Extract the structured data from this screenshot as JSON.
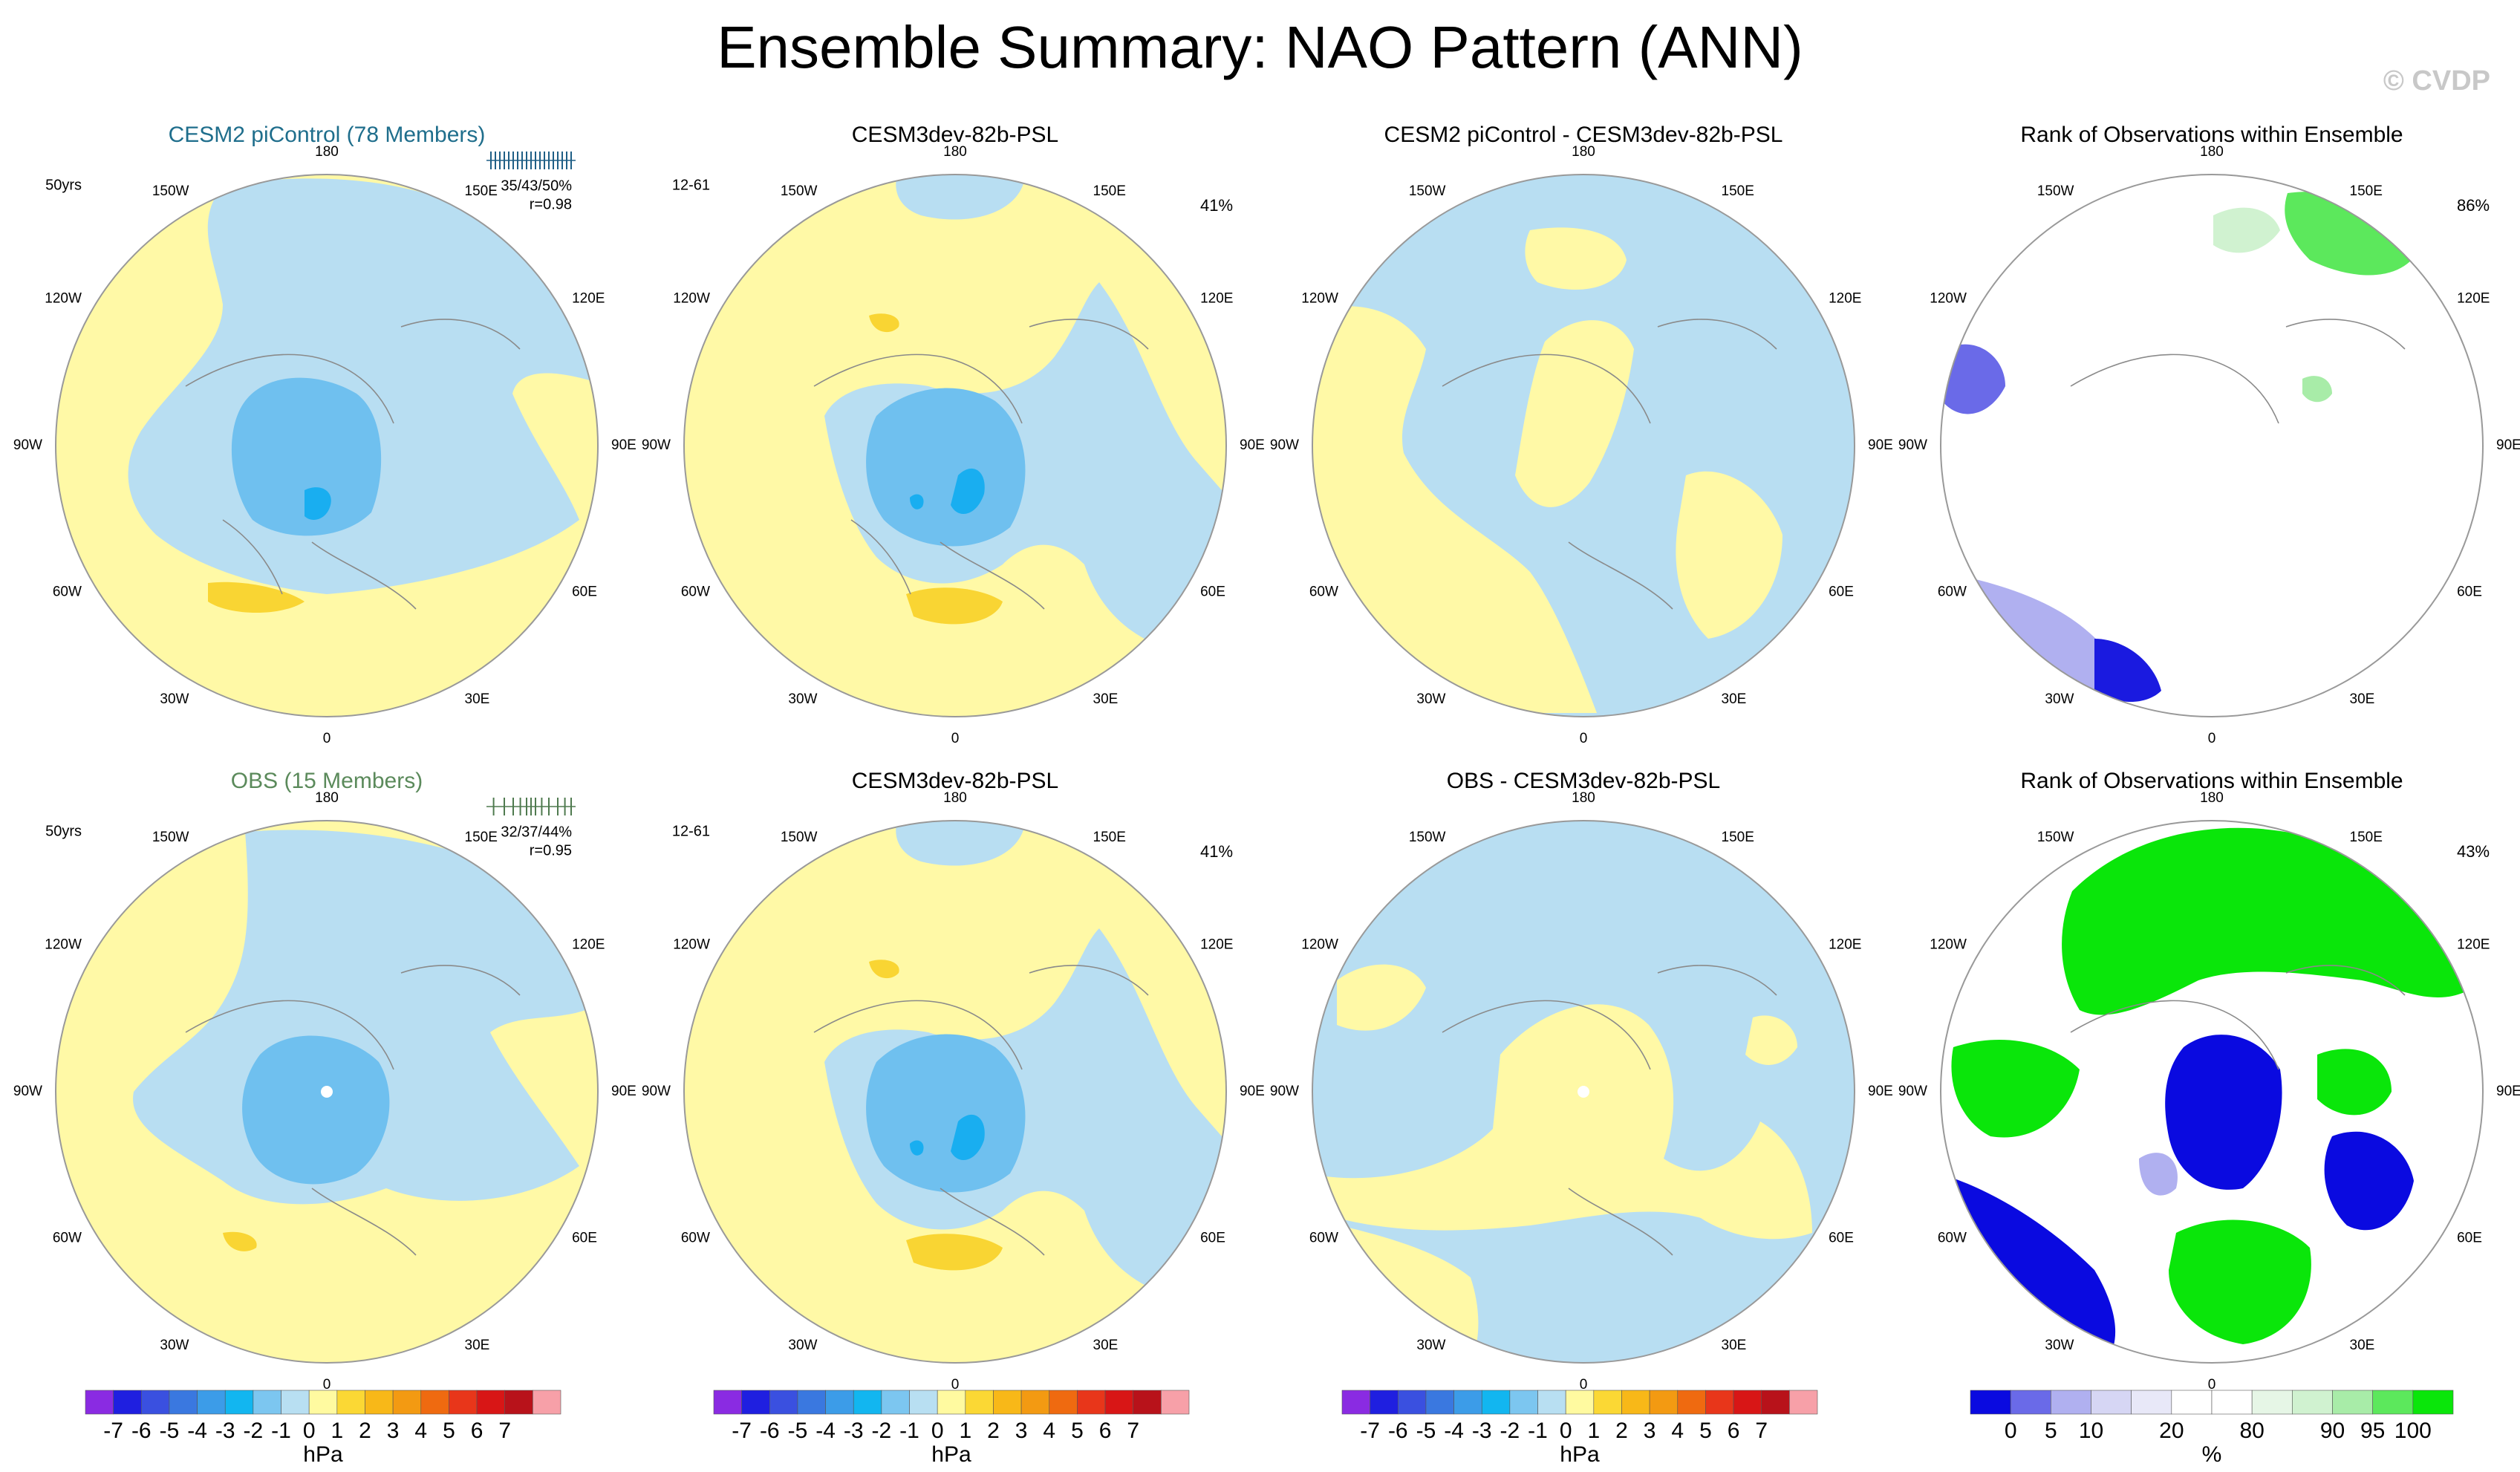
{
  "figure": {
    "title": "Ensemble Summary: NAO Pattern (ANN)",
    "watermark": "© CVDP"
  },
  "chart_data": [
    {
      "type": "heatmap",
      "projection": "polar-stereographic-north",
      "title": "CESM2 piControl (78 Members)",
      "title_color": "#1f6e8c",
      "left_label": "50yrs",
      "stat_text": "35/43/50%",
      "corr_text": "r=0.98",
      "has_spread": true,
      "spread_color": "#1f5f86",
      "spread_values": [
        0.05,
        0.1,
        0.15,
        0.2,
        0.25,
        0.3,
        0.35,
        0.4,
        0.45,
        0.5,
        0.55,
        0.6,
        0.65,
        0.7,
        0.75,
        0.8,
        0.85,
        0.9,
        0.95
      ],
      "pole_dot": false,
      "lon_labels": [
        "180",
        "150E",
        "120E",
        "90E",
        "60E",
        "30E",
        "0",
        "30W",
        "60W",
        "90W",
        "120W",
        "150W"
      ],
      "field": "pressure",
      "units": "hPa"
    },
    {
      "type": "heatmap",
      "projection": "polar-stereographic-north",
      "title": "CESM3dev-82b-PSL",
      "title_color": "#000000",
      "left_label": "12-61",
      "right_label": "41%",
      "has_spread": false,
      "pole_dot": false,
      "lon_labels": [
        "180",
        "150E",
        "120E",
        "90E",
        "60E",
        "30E",
        "0",
        "30W",
        "60W",
        "90W",
        "120W",
        "150W"
      ],
      "field": "pressure",
      "units": "hPa"
    },
    {
      "type": "heatmap",
      "projection": "polar-stereographic-north",
      "title": "CESM2 piControl - CESM3dev-82b-PSL",
      "title_color": "#000000",
      "has_spread": false,
      "pole_dot": false,
      "lon_labels": [
        "180",
        "150E",
        "120E",
        "90E",
        "60E",
        "30E",
        "0",
        "30W",
        "60W",
        "90W",
        "120W",
        "150W"
      ],
      "field": "difference",
      "units": "hPa"
    },
    {
      "type": "heatmap",
      "projection": "polar-stereographic-north",
      "title": "Rank of Observations within Ensemble",
      "title_color": "#000000",
      "right_label": "86%",
      "has_spread": false,
      "pole_dot": false,
      "lon_labels": [
        "180",
        "150E",
        "120E",
        "90E",
        "60E",
        "30E",
        "0",
        "30W",
        "60W",
        "90W",
        "120W",
        "150W"
      ],
      "field": "rank",
      "units": "%"
    },
    {
      "type": "heatmap",
      "projection": "polar-stereographic-north",
      "title": "OBS (15 Members)",
      "title_color": "#5b8a5b",
      "left_label": "50yrs",
      "stat_text": "32/37/44%",
      "corr_text": "r=0.95",
      "has_spread": true,
      "spread_color": "#4f7a4f",
      "spread_values": [
        0.08,
        0.2,
        0.3,
        0.38,
        0.45,
        0.5,
        0.55,
        0.62,
        0.7,
        0.8,
        0.88,
        0.95
      ],
      "pole_dot": true,
      "lon_labels": [
        "180",
        "150E",
        "120E",
        "90E",
        "60E",
        "30E",
        "0",
        "30W",
        "60W",
        "90W",
        "120W",
        "150W"
      ],
      "field": "pressure",
      "units": "hPa"
    },
    {
      "type": "heatmap",
      "projection": "polar-stereographic-north",
      "title": "CESM3dev-82b-PSL",
      "title_color": "#000000",
      "left_label": "12-61",
      "right_label": "41%",
      "has_spread": false,
      "pole_dot": false,
      "lon_labels": [
        "180",
        "150E",
        "120E",
        "90E",
        "60E",
        "30E",
        "0",
        "30W",
        "60W",
        "90W",
        "120W",
        "150W"
      ],
      "field": "pressure",
      "units": "hPa"
    },
    {
      "type": "heatmap",
      "projection": "polar-stereographic-north",
      "title": "OBS - CESM3dev-82b-PSL",
      "title_color": "#000000",
      "has_spread": false,
      "pole_dot": true,
      "lon_labels": [
        "180",
        "150E",
        "120E",
        "90E",
        "60E",
        "30E",
        "0",
        "30W",
        "60W",
        "90W",
        "120W",
        "150W"
      ],
      "field": "difference",
      "units": "hPa"
    },
    {
      "type": "heatmap",
      "projection": "polar-stereographic-north",
      "title": "Rank of Observations within Ensemble",
      "title_color": "#000000",
      "right_label": "43%",
      "has_spread": false,
      "pole_dot": false,
      "lon_labels": [
        "180",
        "150E",
        "120E",
        "90E",
        "60E",
        "30E",
        "0",
        "30W",
        "60W",
        "90W",
        "120W",
        "150W"
      ],
      "field": "rank",
      "units": "%"
    }
  ],
  "colorbars": {
    "pressure": {
      "unit": "hPa",
      "colors": [
        "#8a2be2",
        "#1f1fe0",
        "#3a50e0",
        "#3a78e0",
        "#3c9ce8",
        "#12b6f0",
        "#7cc6f0",
        "#b8dff2",
        "#fffaa0",
        "#fbd834",
        "#f8b818",
        "#f39a12",
        "#ef6a10",
        "#e8361a",
        "#d81616",
        "#b8121a",
        "#f7a0a8"
      ],
      "labels": [
        "-7",
        "-6",
        "-5",
        "-4",
        "-3",
        "-2",
        "-1",
        "0",
        "1",
        "2",
        "3",
        "4",
        "5",
        "6",
        "7"
      ]
    },
    "rank": {
      "unit": "%",
      "colors": [
        "#0a0ae0",
        "#6a6ae8",
        "#b0b0f0",
        "#d6d6f4",
        "#e8e8f8",
        "#ffffff",
        "#ffffff",
        "#e6f6e6",
        "#d0f2d0",
        "#a8eca8",
        "#5ce85c",
        "#0ae60a"
      ],
      "labels": [
        "0",
        "5",
        "10",
        "20",
        "80",
        "90",
        "95",
        "100"
      ]
    }
  }
}
